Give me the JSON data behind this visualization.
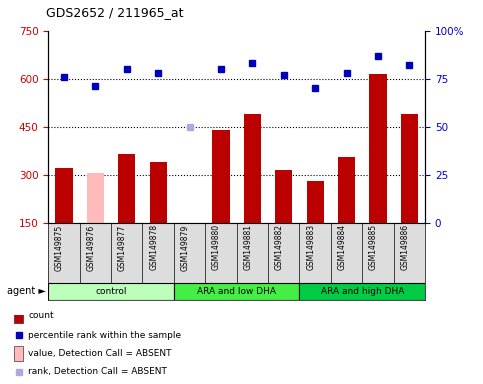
{
  "title": "GDS2652 / 211965_at",
  "samples": [
    "GSM149875",
    "GSM149876",
    "GSM149877",
    "GSM149878",
    "GSM149879",
    "GSM149880",
    "GSM149881",
    "GSM149882",
    "GSM149883",
    "GSM149884",
    "GSM149885",
    "GSM149886"
  ],
  "bar_values": [
    320,
    305,
    365,
    340,
    150,
    440,
    490,
    315,
    280,
    355,
    615,
    490
  ],
  "absent_bar": [
    false,
    true,
    false,
    false,
    false,
    false,
    false,
    false,
    false,
    false,
    false,
    false
  ],
  "rank_values": [
    76,
    71,
    80,
    78,
    50,
    80,
    83,
    77,
    70,
    78,
    87,
    82
  ],
  "rank_absent": [
    false,
    false,
    false,
    false,
    true,
    false,
    false,
    false,
    false,
    false,
    false,
    false
  ],
  "ylim_left": [
    150,
    750
  ],
  "ylim_right": [
    0,
    100
  ],
  "yticks_left": [
    150,
    300,
    450,
    600,
    750
  ],
  "yticks_right": [
    0,
    25,
    50,
    75,
    100
  ],
  "hlines": [
    300,
    450,
    600
  ],
  "groups": [
    {
      "label": "control",
      "start": 0,
      "end": 3,
      "color": "#bbffbb"
    },
    {
      "label": "ARA and low DHA",
      "start": 4,
      "end": 7,
      "color": "#44ee44"
    },
    {
      "label": "ARA and high DHA",
      "start": 8,
      "end": 11,
      "color": "#00cc44"
    }
  ],
  "bar_color_normal": "#bb0000",
  "bar_color_absent": "#ffbbbb",
  "dot_color_normal": "#0000bb",
  "dot_color_absent": "#aaaadd",
  "left_label_color": "#cc0000",
  "right_label_color": "#0000cc",
  "xlabel_bg": "#dddddd",
  "legend_items": [
    {
      "label": "count",
      "color": "#bb0000",
      "type": "rect"
    },
    {
      "label": "percentile rank within the sample",
      "color": "#0000bb",
      "type": "square"
    },
    {
      "label": "value, Detection Call = ABSENT",
      "color": "#ffbbbb",
      "type": "rect"
    },
    {
      "label": "rank, Detection Call = ABSENT",
      "color": "#aaaadd",
      "type": "square"
    }
  ]
}
